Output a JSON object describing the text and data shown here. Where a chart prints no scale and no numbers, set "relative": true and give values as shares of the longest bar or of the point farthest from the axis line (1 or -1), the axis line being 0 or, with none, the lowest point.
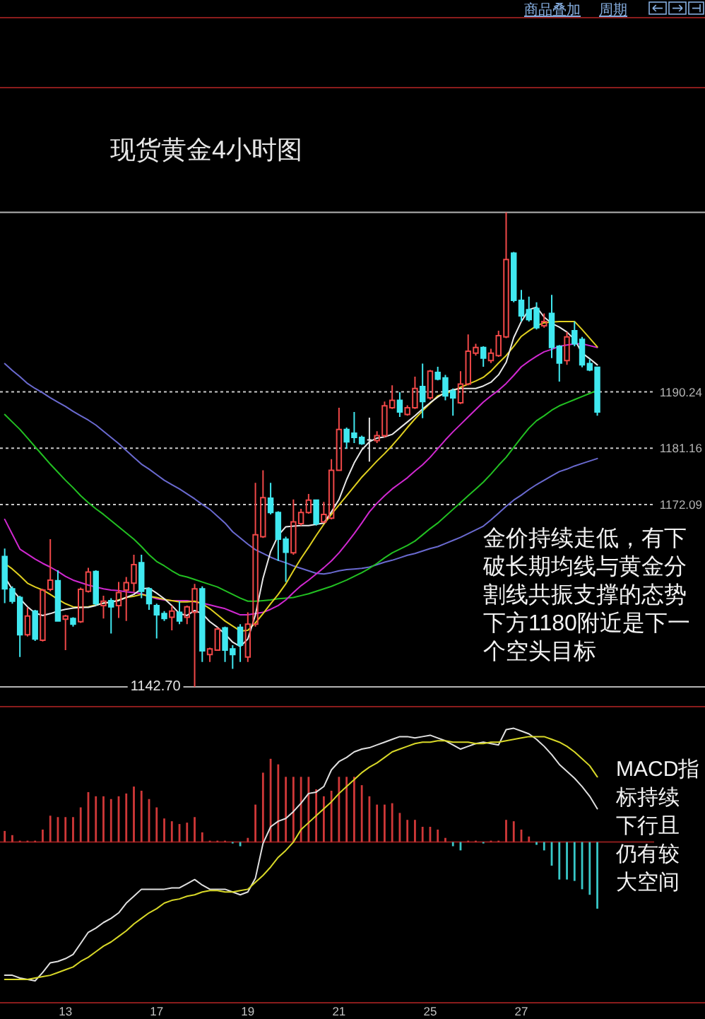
{
  "chart_data": [
    {
      "type": "candlestick",
      "title": "现货黄金4小时图",
      "categories": [
        null,
        null,
        null,
        null,
        null,
        null,
        null,
        null,
        null,
        null,
        null,
        null,
        null,
        null,
        null,
        null,
        null,
        null,
        null,
        null,
        null,
        null,
        null,
        null,
        null,
        null,
        null,
        null,
        null,
        null,
        null,
        null,
        null,
        null,
        null,
        null,
        null,
        null,
        null,
        null,
        null,
        null,
        null,
        null,
        null,
        null,
        null,
        null,
        null,
        null,
        null,
        null,
        null,
        null,
        null,
        null,
        null,
        null,
        null,
        null,
        null,
        null,
        null,
        null,
        null,
        null,
        null,
        null,
        null,
        null,
        null,
        null,
        null,
        null,
        null,
        null,
        null,
        null,
        null
      ],
      "ohlc": [
        [
          1163.7,
          1165.0,
          1156.2,
          1158.5
        ],
        [
          1158.5,
          1158.9,
          1156.1,
          1156.5
        ],
        [
          1157.1,
          1157.4,
          1147.5,
          1151.1
        ],
        [
          1151.1,
          1155.5,
          1150.8,
          1154.1
        ],
        [
          1154.9,
          1155.1,
          1150.1,
          1150.4
        ],
        [
          1150.2,
          1158.5,
          1150.0,
          1158.3
        ],
        [
          1158.4,
          1166.5,
          1158.1,
          1159.9
        ],
        [
          1159.8,
          1161.5,
          1153.2,
          1153.3
        ],
        [
          1153.6,
          1154.3,
          1148.6,
          1154.1
        ],
        [
          1153.7,
          1153.9,
          1152.4,
          1152.8
        ],
        [
          1153.2,
          1158.7,
          1153.0,
          1158.4
        ],
        [
          1158.1,
          1161.9,
          1157.9,
          1161.2
        ],
        [
          1161.3,
          1161.5,
          1155.8,
          1156.1
        ],
        [
          1155.8,
          1157.4,
          1153.7,
          1156.5
        ],
        [
          1156.6,
          1157.0,
          1151.3,
          1155.6
        ],
        [
          1155.8,
          1159.6,
          1153.8,
          1157.9
        ],
        [
          1158.3,
          1160.4,
          1153.3,
          1159.5
        ],
        [
          1159.4,
          1164.0,
          1158.0,
          1162.4
        ],
        [
          1162.7,
          1164.0,
          1157.0,
          1158.1
        ],
        [
          1158.5,
          1158.7,
          1155.1,
          1156.1
        ],
        [
          1155.8,
          1156.1,
          1150.5,
          1154.3
        ],
        [
          1154.5,
          1154.9,
          1153.3,
          1153.7
        ],
        [
          1153.9,
          1155.8,
          1151.8,
          1154.9
        ],
        [
          1154.7,
          1156.5,
          1152.8,
          1153.3
        ],
        [
          1153.9,
          1155.8,
          1152.8,
          1155.6
        ],
        [
          1154.7,
          1159.3,
          1142.7,
          1158.5
        ],
        [
          1158.5,
          1158.9,
          1146.7,
          1148.5
        ],
        [
          1147.9,
          1149.0,
          1146.7,
          1148.8
        ],
        [
          1148.6,
          1152.3,
          1148.5,
          1152.0
        ],
        [
          1152.2,
          1152.4,
          1146.7,
          1148.6
        ],
        [
          1148.8,
          1149.4,
          1145.6,
          1147.9
        ],
        [
          1152.3,
          1152.8,
          1146.7,
          1149.4
        ],
        [
          1147.5,
          1154.7,
          1146.7,
          1152.8
        ],
        [
          1152.8,
          1175.6,
          1152.4,
          1167.2
        ],
        [
          1166.9,
          1177.6,
          1166.7,
          1173.2
        ],
        [
          1173.1,
          1175.6,
          1170.5,
          1170.8
        ],
        [
          1170.8,
          1171.0,
          1163.0,
          1166.5
        ],
        [
          1166.5,
          1166.9,
          1159.6,
          1164.4
        ],
        [
          1164.3,
          1172.9,
          1164.0,
          1169.3
        ],
        [
          1169.0,
          1171.4,
          1168.7,
          1170.8
        ],
        [
          1170.8,
          1173.8,
          1170.6,
          1172.8
        ],
        [
          1172.8,
          1172.9,
          1168.7,
          1169.0
        ],
        [
          1169.3,
          1172.5,
          1169.1,
          1170.5
        ],
        [
          1169.9,
          1179.4,
          1169.7,
          1177.6
        ],
        [
          1177.6,
          1187.7,
          1177.5,
          1184.2
        ],
        [
          1184.2,
          1184.5,
          1181.1,
          1182.2
        ],
        [
          1183.6,
          1187.0,
          1182.0,
          1182.9
        ],
        [
          1182.9,
          1183.2,
          1181.7,
          1181.9
        ],
        [
          1182.5,
          1186.1,
          1179.0,
          1182.5
        ],
        [
          1182.4,
          1183.9,
          1182.0,
          1183.2
        ],
        [
          1183.2,
          1188.7,
          1182.9,
          1188.0
        ],
        [
          1187.7,
          1191.3,
          1187.5,
          1188.9
        ],
        [
          1188.9,
          1190.2,
          1186.2,
          1187.0
        ],
        [
          1186.6,
          1188.1,
          1186.4,
          1187.7
        ],
        [
          1187.7,
          1192.7,
          1187.5,
          1190.8
        ],
        [
          1191.1,
          1194.8,
          1186.0,
          1188.7
        ],
        [
          1189.3,
          1193.8,
          1189.0,
          1193.6
        ],
        [
          1193.4,
          1194.3,
          1192.1,
          1192.3
        ],
        [
          1192.5,
          1193.0,
          1188.9,
          1189.6
        ],
        [
          1190.4,
          1190.8,
          1186.4,
          1189.3
        ],
        [
          1188.5,
          1193.6,
          1188.3,
          1191.5
        ],
        [
          1191.5,
          1199.5,
          1191.3,
          1196.8
        ],
        [
          1196.5,
          1198.0,
          1196.1,
          1197.4
        ],
        [
          1197.4,
          1197.6,
          1194.3,
          1195.7
        ],
        [
          1195.3,
          1197.2,
          1194.9,
          1196.5
        ],
        [
          1196.1,
          1200.1,
          1195.9,
          1199.3
        ],
        [
          1199.1,
          1219.2,
          1198.9,
          1211.6
        ],
        [
          1212.6,
          1212.8,
          1204.7,
          1205.0
        ],
        [
          1205.0,
          1206.7,
          1201.6,
          1202.5
        ],
        [
          1203.5,
          1205.6,
          1201.6,
          1201.9
        ],
        [
          1203.7,
          1204.7,
          1200.3,
          1200.6
        ],
        [
          1200.9,
          1202.9,
          1200.6,
          1201.6
        ],
        [
          1202.9,
          1205.9,
          1195.7,
          1197.4
        ],
        [
          1197.6,
          1197.8,
          1191.9,
          1194.9
        ],
        [
          1195.3,
          1199.9,
          1194.6,
          1199.1
        ],
        [
          1200.1,
          1201.6,
          1197.6,
          1198.0
        ],
        [
          1198.7,
          1199.1,
          1194.2,
          1194.6
        ],
        [
          1194.8,
          1195.5,
          1193.6,
          1193.8
        ],
        [
          1194.2,
          1194.3,
          1186.4,
          1187.0
        ]
      ],
      "colors": [
        "#40e8f0",
        "#40e8f0",
        "#40e8f0",
        "#f04848",
        "#40e8f0",
        "#f04848",
        "#f04848",
        "#40e8f0",
        "#f04848",
        "#40e8f0",
        "#f04848",
        "#f04848",
        "#40e8f0",
        "#f04848",
        "#40e8f0",
        "#f04848",
        "#f04848",
        "#f04848",
        "#40e8f0",
        "#40e8f0",
        "#40e8f0",
        "#40e8f0",
        "#f04848",
        "#40e8f0",
        "#f04848",
        "#f04848",
        "#40e8f0",
        "#f04848",
        "#f04848",
        "#40e8f0",
        "#40e8f0",
        "#40e8f0",
        "#f04848",
        "#f04848",
        "#f04848",
        "#40e8f0",
        "#40e8f0",
        "#40e8f0",
        "#f04848",
        "#f04848",
        "#f04848",
        "#40e8f0",
        "#f04848",
        "#f04848",
        "#f04848",
        "#40e8f0",
        "#40e8f0",
        "#40e8f0",
        "#e0e0e0",
        "#f04848",
        "#f04848",
        "#f04848",
        "#40e8f0",
        "#f04848",
        "#f04848",
        "#40e8f0",
        "#f04848",
        "#40e8f0",
        "#40e8f0",
        "#40e8f0",
        "#f04848",
        "#f04848",
        "#f04848",
        "#40e8f0",
        "#f04848",
        "#f04848",
        "#f04848",
        "#40e8f0",
        "#40e8f0",
        "#40e8f0",
        "#40e8f0",
        "#f04848",
        "#40e8f0",
        "#40e8f0",
        "#f04848",
        "#40e8f0",
        "#40e8f0",
        "#40e8f0",
        "#40e8f0"
      ],
      "series": [
        {
          "type": "line",
          "color": "#6a6ad0",
          "values": [
            1194.8,
            1193.7,
            1192.7,
            1191.6,
            1190.8,
            1190.1,
            1189.3,
            1188.6,
            1187.9,
            1187.1,
            1186.4,
            1185.7,
            1184.9,
            1183.9,
            1182.9,
            1181.9,
            1180.8,
            1179.7,
            1178.6,
            1177.8,
            1176.9,
            1176.0,
            1175.3,
            1174.6,
            1173.8,
            1173.0,
            1172.1,
            1171.3,
            1170.2,
            1169.1,
            1167.7,
            1166.7,
            1165.7,
            1164.8,
            1164.2,
            1163.6,
            1163.1,
            1162.7,
            1162.2,
            1161.8,
            1161.4,
            1161.0,
            1160.9,
            1161.1,
            1161.4,
            1161.6,
            1161.7,
            1161.8,
            1162.0,
            1162.4,
            1162.8,
            1163.1,
            1163.5,
            1163.9,
            1164.2,
            1164.6,
            1165.0,
            1165.3,
            1165.8,
            1166.3,
            1166.8,
            1167.4,
            1168.0,
            1168.6,
            1169.6,
            1170.7,
            1171.8,
            1172.8,
            1173.6,
            1174.5,
            1175.3,
            1176.0,
            1176.7,
            1177.4,
            1177.8,
            1178.3,
            1178.7,
            1179.1,
            1179.5
          ]
        },
        {
          "type": "line",
          "color": "#22c022",
          "values": [
            1186.6,
            1185.4,
            1184.2,
            1182.8,
            1181.4,
            1180.0,
            1178.6,
            1177.3,
            1176.0,
            1174.8,
            1173.5,
            1172.4,
            1171.4,
            1170.5,
            1169.5,
            1168.5,
            1167.5,
            1166.5,
            1165.3,
            1164.0,
            1162.9,
            1162.2,
            1161.4,
            1160.7,
            1160.4,
            1160.0,
            1159.6,
            1159.2,
            1158.8,
            1158.2,
            1157.6,
            1157.0,
            1156.5,
            1156.5,
            1156.6,
            1156.7,
            1156.9,
            1157.0,
            1157.1,
            1157.4,
            1157.7,
            1158.1,
            1158.5,
            1158.9,
            1159.4,
            1159.9,
            1160.5,
            1161.1,
            1161.8,
            1162.6,
            1163.5,
            1164.3,
            1164.9,
            1165.5,
            1166.2,
            1167.2,
            1168.2,
            1169.1,
            1170.2,
            1171.3,
            1172.4,
            1173.5,
            1174.6,
            1175.7,
            1177.0,
            1178.4,
            1179.7,
            1181.3,
            1182.9,
            1184.4,
            1185.6,
            1186.4,
            1187.3,
            1188.0,
            1188.5,
            1189.0,
            1189.5,
            1190.0,
            1190.5
          ]
        },
        {
          "type": "line",
          "color": "#d028d0",
          "values": [
            1169.7,
            1167.3,
            1164.9,
            1164.1,
            1163.3,
            1162.6,
            1162.0,
            1161.3,
            1160.5,
            1159.9,
            1159.5,
            1159.1,
            1158.8,
            1158.5,
            1158.3,
            1158.2,
            1158.0,
            1157.9,
            1157.7,
            1157.3,
            1156.9,
            1156.7,
            1156.6,
            1156.6,
            1156.6,
            1156.4,
            1156.2,
            1155.9,
            1155.6,
            1155.3,
            1154.8,
            1154.3,
            1154.3,
            1154.5,
            1154.7,
            1155.2,
            1155.8,
            1156.7,
            1157.9,
            1159.0,
            1159.9,
            1160.9,
            1161.9,
            1163.0,
            1164.3,
            1165.8,
            1167.4,
            1169.1,
            1170.9,
            1172.3,
            1173.5,
            1174.6,
            1175.5,
            1176.4,
            1177.5,
            1178.5,
            1179.7,
            1181.1,
            1182.5,
            1183.8,
            1185.0,
            1186.2,
            1187.4,
            1188.6,
            1189.6,
            1190.5,
            1191.6,
            1192.9,
            1194.3,
            1195.2,
            1196.0,
            1196.7,
            1197.1,
            1197.6,
            1197.8,
            1198.0,
            1198.0,
            1197.7,
            1197.4
          ]
        },
        {
          "type": "line",
          "color": "#e0d020",
          "values": [
            1162.6,
            1161.7,
            1160.6,
            1159.4,
            1158.8,
            1158.3,
            1157.6,
            1156.8,
            1156.1,
            1155.6,
            1155.5,
            1155.6,
            1155.9,
            1156.2,
            1156.3,
            1156.7,
            1157.1,
            1157.3,
            1157.6,
            1157.3,
            1157.1,
            1156.8,
            1156.6,
            1156.4,
            1156.4,
            1156.5,
            1156.1,
            1155.3,
            1154.3,
            1153.3,
            1152.5,
            1151.7,
            1151.8,
            1153.0,
            1154.5,
            1156.1,
            1157.6,
            1159.3,
            1161.4,
            1163.4,
            1165.2,
            1167.1,
            1168.9,
            1170.5,
            1172.0,
            1173.5,
            1175.0,
            1176.5,
            1177.8,
            1179.1,
            1180.3,
            1181.6,
            1183.0,
            1184.5,
            1185.9,
            1187.2,
            1188.4,
            1189.6,
            1190.0,
            1190.4,
            1191.0,
            1191.5,
            1192.0,
            1192.6,
            1193.6,
            1194.9,
            1196.1,
            1197.6,
            1199.2,
            1200.1,
            1200.9,
            1201.4,
            1201.5,
            1201.6,
            1201.6,
            1201.6,
            1200.3,
            1198.9,
            1197.5
          ]
        },
        {
          "type": "line",
          "color": "#e8e8e8",
          "values": [
            1160.4,
            1158.4,
            1156.9,
            1155.6,
            1154.6,
            1154.2,
            1154.5,
            1154.9,
            1155.2,
            1155.4,
            1155.5,
            1155.5,
            1155.8,
            1156.2,
            1156.4,
            1156.6,
            1157.1,
            1157.6,
            1158.5,
            1158.6,
            1157.8,
            1156.9,
            1155.8,
            1154.5,
            1154.2,
            1155.0,
            1154.5,
            1153.2,
            1152.3,
            1151.2,
            1149.9,
            1149.2,
            1150.4,
            1154.3,
            1160.2,
            1164.5,
            1167.1,
            1168.5,
            1168.6,
            1168.7,
            1168.7,
            1168.9,
            1169.1,
            1170.9,
            1172.9,
            1176.1,
            1178.8,
            1180.9,
            1182.2,
            1182.8,
            1183.0,
            1183.4,
            1184.4,
            1185.4,
            1186.4,
            1187.5,
            1188.5,
            1189.4,
            1190.2,
            1190.6,
            1190.8,
            1190.8,
            1190.8,
            1191.2,
            1191.8,
            1193.0,
            1195.0,
            1199.0,
            1201.6,
            1203.5,
            1203.9,
            1202.3,
            1201.3,
            1200.7,
            1199.9,
            1198.7,
            1196.5,
            1195.6,
            1194.6
          ]
        }
      ],
      "ylim": [
        1139.5,
        1239.3
      ],
      "yticks": [
        1172.09,
        1181.16,
        1190.24
      ],
      "grid": "y",
      "tick_labels": "y",
      "ref_lines": [
        {
          "axis": "y",
          "value": 1219.2,
          "color": "#b4b4b4"
        },
        {
          "axis": "y",
          "value": 1142.7,
          "label": "1142.70",
          "color": "#b4b4b4"
        }
      ],
      "annotations": [
        "金价持续走低，有下破长期均线与黄金分割线共振支撑的态势下方1180附近是下一个空头目标",
        "商品叠加",
        "周期"
      ]
    },
    {
      "type": "bar",
      "relative": true,
      "tick_labels": "x",
      "categories": [
        null,
        null,
        null,
        null,
        null,
        null,
        null,
        null,
        "13",
        null,
        null,
        null,
        null,
        null,
        null,
        null,
        null,
        null,
        null,
        null,
        "17",
        null,
        null,
        null,
        null,
        null,
        null,
        null,
        null,
        null,
        null,
        null,
        "19",
        null,
        null,
        null,
        null,
        null,
        null,
        null,
        null,
        null,
        null,
        null,
        "21",
        null,
        null,
        null,
        null,
        null,
        null,
        null,
        null,
        null,
        null,
        null,
        "25",
        null,
        null,
        null,
        null,
        null,
        null,
        null,
        null,
        null,
        null,
        null,
        "27",
        null,
        null,
        null,
        null,
        null,
        null,
        null,
        null,
        null,
        null
      ],
      "series": [
        {
          "values": [
            0.08,
            0.05,
            0.01,
            0.01,
            0.01,
            0.09,
            0.19,
            0.18,
            0.18,
            0.18,
            0.25,
            0.36,
            0.33,
            0.33,
            0.31,
            0.33,
            0.35,
            0.4,
            0.37,
            0.31,
            0.25,
            0.17,
            0.15,
            0.13,
            0.14,
            0.18,
            0.07,
            0.01,
            0.01,
            0.01,
            -0.01,
            -0.03,
            0.03,
            0.27,
            0.5,
            0.6,
            0.56,
            0.47,
            0.47,
            0.47,
            0.47,
            0.38,
            0.33,
            0.37,
            0.47,
            0.47,
            0.47,
            0.41,
            0.33,
            0.27,
            0.27,
            0.28,
            0.21,
            0.16,
            0.16,
            0.11,
            0.11,
            0.09,
            0.03,
            -0.03,
            -0.06,
            0.01,
            0.01,
            -0.01,
            0.01,
            0.01,
            0.16,
            0.15,
            0.09,
            0.04,
            -0.02,
            -0.06,
            -0.17,
            -0.27,
            -0.27,
            -0.28,
            -0.34,
            -0.38,
            -0.48
          ],
          "colors": [
            "#d03838",
            "#d03838",
            "#d03838",
            "#d03838",
            "#d03838",
            "#d03838",
            "#d03838",
            "#d03838",
            "#d03838",
            "#d03838",
            "#d03838",
            "#d03838",
            "#d03838",
            "#d03838",
            "#d03838",
            "#d03838",
            "#d03838",
            "#d03838",
            "#d03838",
            "#d03838",
            "#d03838",
            "#d03838",
            "#d03838",
            "#d03838",
            "#d03838",
            "#d03838",
            "#d03838",
            "#d03838",
            "#d03838",
            "#d03838",
            "#38c8c8",
            "#38c8c8",
            "#d03838",
            "#d03838",
            "#d03838",
            "#d03838",
            "#d03838",
            "#d03838",
            "#d03838",
            "#d03838",
            "#d03838",
            "#d03838",
            "#d03838",
            "#d03838",
            "#d03838",
            "#d03838",
            "#d03838",
            "#d03838",
            "#d03838",
            "#d03838",
            "#d03838",
            "#d03838",
            "#d03838",
            "#d03838",
            "#d03838",
            "#d03838",
            "#d03838",
            "#d03838",
            "#d03838",
            "#38c8c8",
            "#38c8c8",
            "#d03838",
            "#d03838",
            "#38c8c8",
            "#d03838",
            "#d03838",
            "#d03838",
            "#d03838",
            "#d03838",
            "#d03838",
            "#38c8c8",
            "#38c8c8",
            "#38c8c8",
            "#38c8c8",
            "#38c8c8",
            "#38c8c8",
            "#38c8c8",
            "#38c8c8",
            "#38c8c8"
          ]
        },
        {
          "type": "line",
          "color": "#e0e0e0",
          "values": [
            -0.96,
            -0.96,
            -0.98,
            -0.99,
            -1,
            -0.94,
            -0.87,
            -0.86,
            -0.84,
            -0.81,
            -0.73,
            -0.65,
            -0.62,
            -0.58,
            -0.55,
            -0.51,
            -0.44,
            -0.39,
            -0.34,
            -0.34,
            -0.34,
            -0.34,
            -0.33,
            -0.33,
            -0.3,
            -0.27,
            -0.31,
            -0.34,
            -0.34,
            -0.34,
            -0.36,
            -0.38,
            -0.36,
            -0.26,
            -0.01,
            0.11,
            0.15,
            0.17,
            0.22,
            0.28,
            0.35,
            0.36,
            0.4,
            0.52,
            0.58,
            0.61,
            0.65,
            0.67,
            0.68,
            0.7,
            0.72,
            0.74,
            0.76,
            0.76,
            0.75,
            0.76,
            0.77,
            0.75,
            0.73,
            0.7,
            0.67,
            0.69,
            0.71,
            0.72,
            0.71,
            0.7,
            0.81,
            0.82,
            0.8,
            0.78,
            0.74,
            0.69,
            0.63,
            0.56,
            0.51,
            0.46,
            0.4,
            0.33,
            0.24
          ]
        },
        {
          "type": "line",
          "color": "#d8d828",
          "values": [
            -0.99,
            -0.99,
            -0.99,
            -0.99,
            -0.98,
            -0.97,
            -0.96,
            -0.94,
            -0.92,
            -0.9,
            -0.86,
            -0.83,
            -0.79,
            -0.75,
            -0.72,
            -0.68,
            -0.64,
            -0.59,
            -0.55,
            -0.51,
            -0.48,
            -0.44,
            -0.42,
            -0.41,
            -0.39,
            -0.38,
            -0.36,
            -0.35,
            -0.35,
            -0.36,
            -0.36,
            -0.35,
            -0.34,
            -0.29,
            -0.24,
            -0.18,
            -0.11,
            -0.06,
            0,
            0.09,
            0.14,
            0.19,
            0.24,
            0.29,
            0.35,
            0.4,
            0.45,
            0.5,
            0.54,
            0.57,
            0.61,
            0.65,
            0.67,
            0.69,
            0.71,
            0.72,
            0.72,
            0.73,
            0.73,
            0.72,
            0.72,
            0.72,
            0.71,
            0.71,
            0.72,
            0.72,
            0.73,
            0.74,
            0.75,
            0.76,
            0.76,
            0.76,
            0.74,
            0.72,
            0.69,
            0.65,
            0.6,
            0.55,
            0.47
          ]
        }
      ],
      "ref_lines": [
        {
          "axis": "y",
          "value": 0,
          "color": "#8a1c1c"
        }
      ],
      "annotations": [
        "MACD指标持续下行且仍有较大空间"
      ]
    }
  ]
}
